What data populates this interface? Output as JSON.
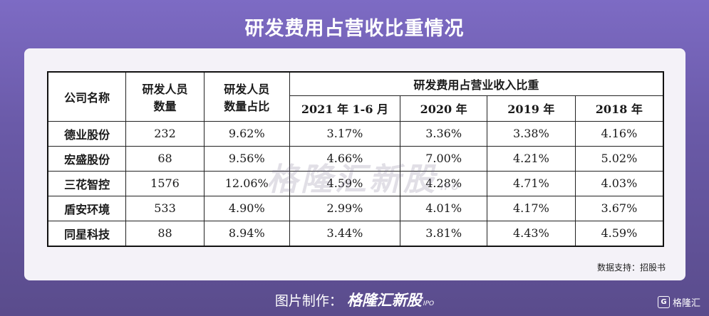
{
  "page_title": "研发费用占营收比重情况",
  "table": {
    "header": {
      "company": "公司名称",
      "staff_count": [
        "研发人员",
        "数量"
      ],
      "staff_ratio": [
        "研发人员",
        "数量占比"
      ],
      "rd_ratio_group": "研发费用占营业收入比重",
      "periods": [
        "2021 年 1-6 月",
        "2020 年",
        "2019 年",
        "2018 年"
      ]
    },
    "rows": [
      {
        "company": "德业股份",
        "staff": "232",
        "ratio": "9.62%",
        "p1": "3.17%",
        "p2": "3.36%",
        "p3": "3.38%",
        "p4": "4.16%"
      },
      {
        "company": "宏盛股份",
        "staff": "68",
        "ratio": "9.56%",
        "p1": "4.66%",
        "p2": "7.00%",
        "p3": "4.21%",
        "p4": "5.02%"
      },
      {
        "company": "三花智控",
        "staff": "1576",
        "ratio": "12.06%",
        "p1": "4.59%",
        "p2": "4.28%",
        "p3": "4.71%",
        "p4": "4.03%"
      },
      {
        "company": "盾安环境",
        "staff": "533",
        "ratio": "4.90%",
        "p1": "2.99%",
        "p2": "4.01%",
        "p3": "4.17%",
        "p4": "3.67%"
      },
      {
        "company": "同星科技",
        "staff": "88",
        "ratio": "8.94%",
        "p1": "3.44%",
        "p2": "3.81%",
        "p3": "4.43%",
        "p4": "4.59%"
      }
    ]
  },
  "watermark": {
    "brand": "格隆汇新股",
    "suffix": "IPO"
  },
  "source": "数据支持：招股书",
  "footer": {
    "label": "图片制作：",
    "brand": "格隆汇新股",
    "suffix": "IPO"
  },
  "logo": {
    "mark": "G",
    "text": "格隆汇"
  }
}
